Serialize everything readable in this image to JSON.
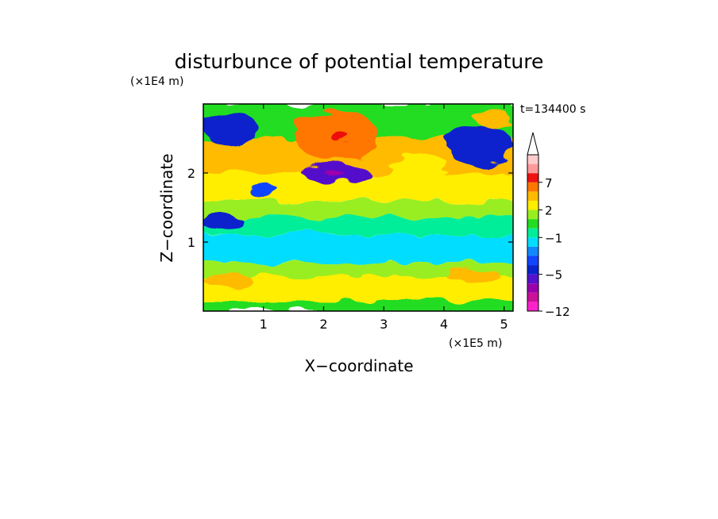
{
  "chart_data": {
    "type": "heatmap",
    "title": "disturbunce of potential temperature",
    "y_unit_label": "(×1E4 m)",
    "x_unit_label": "(×1E5 m)",
    "xlabel": "X−coordinate",
    "ylabel": "Z−coordinate",
    "time_label": "t=134400 s",
    "xlim": [
      0,
      5.15
    ],
    "ylim": [
      0,
      3.0
    ],
    "x_ticks": [
      1,
      2,
      3,
      4,
      5
    ],
    "y_ticks": [
      1,
      2
    ],
    "x_tick_labels": [
      "1",
      "2",
      "3",
      "4",
      "5"
    ],
    "y_tick_labels": [
      "1",
      "2"
    ],
    "colorbar": {
      "levels": [
        -12,
        -10,
        -8,
        -6,
        -5,
        -4,
        -3,
        -2,
        -1,
        0,
        1,
        2,
        3,
        5,
        7,
        8,
        9
      ],
      "tick_labels": [
        "−12",
        "−5",
        "−1",
        "2",
        "7"
      ],
      "colors": [
        "#ff22cc",
        "#cc1199",
        "#9900aa",
        "#5511cc",
        "#0a22cc",
        "#1144ff",
        "#1188ff",
        "#00ddff",
        "#00ee99",
        "#22dd22",
        "#99ee22",
        "#ffee00",
        "#ffbb00",
        "#ff7700",
        "#ee1111",
        "#ff9999",
        "#ffcccc"
      ],
      "extend_top": true
    },
    "bands": [
      {
        "z": [
          0.0,
          0.15
        ],
        "value": 0.5
      },
      {
        "z": [
          0.15,
          0.5
        ],
        "value": 2.5
      },
      {
        "z": [
          0.5,
          0.7
        ],
        "value": 1.5
      },
      {
        "z": [
          0.7,
          1.1
        ],
        "value": -1.5
      },
      {
        "z": [
          1.1,
          1.35
        ],
        "value": -0.5
      },
      {
        "z": [
          1.35,
          1.6
        ],
        "value": 1.0
      },
      {
        "z": [
          1.6,
          2.0
        ],
        "value": 2.0
      },
      {
        "z": [
          2.0,
          2.5
        ],
        "value": 3.5
      },
      {
        "z": [
          2.5,
          3.0
        ],
        "value": 0.0
      }
    ],
    "features": [
      {
        "x": 0.45,
        "z": 2.65,
        "rx": 0.45,
        "rz": 0.25,
        "value": -4.5
      },
      {
        "x": 2.2,
        "z": 2.55,
        "rx": 0.7,
        "rz": 0.35,
        "value": 5.5
      },
      {
        "x": 2.3,
        "z": 2.5,
        "rx": 0.15,
        "rz": 0.08,
        "value": 7.5
      },
      {
        "x": 2.2,
        "z": 2.0,
        "rx": 0.55,
        "rz": 0.15,
        "value": -5.5
      },
      {
        "x": 2.2,
        "z": 1.98,
        "rx": 0.15,
        "rz": 0.05,
        "value": -7
      },
      {
        "x": 4.6,
        "z": 2.4,
        "rx": 0.55,
        "rz": 0.3,
        "value": -4.5
      },
      {
        "x": 4.8,
        "z": 2.8,
        "rx": 0.3,
        "rz": 0.12,
        "value": 3.5
      },
      {
        "x": 1.0,
        "z": 1.75,
        "rx": 0.25,
        "rz": 0.1,
        "value": -3.5
      },
      {
        "x": 0.3,
        "z": 1.3,
        "rx": 0.35,
        "rz": 0.12,
        "value": -4.5
      },
      {
        "x": 3.6,
        "z": 2.1,
        "rx": 0.5,
        "rz": 0.15,
        "value": 2.5
      },
      {
        "x": 0.4,
        "z": 0.45,
        "rx": 0.4,
        "rz": 0.12,
        "value": 3.5
      },
      {
        "x": 4.5,
        "z": 0.5,
        "rx": 0.45,
        "rz": 0.12,
        "value": 3.5
      }
    ]
  }
}
